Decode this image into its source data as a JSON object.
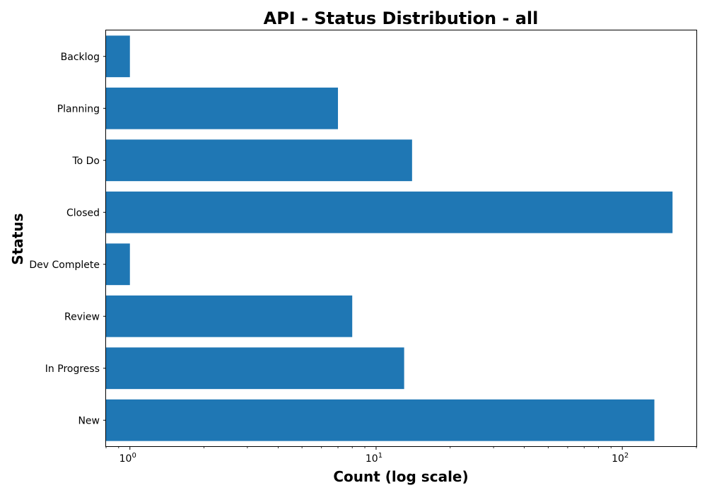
{
  "chart_data": {
    "type": "bar",
    "orientation": "horizontal",
    "title": "API - Status Distribution - all",
    "xlabel": "Count (log scale)",
    "ylabel": "Status",
    "x_scale": "log",
    "xlim": [
      0.8,
      200
    ],
    "x_ticks": [
      {
        "value": 1,
        "base": "10",
        "exp": "0"
      },
      {
        "value": 10,
        "base": "10",
        "exp": "1"
      },
      {
        "value": 100,
        "base": "10",
        "exp": "2"
      }
    ],
    "categories": [
      "New",
      "In Progress",
      "Review",
      "Dev Complete",
      "Closed",
      "To Do",
      "Planning",
      "Backlog"
    ],
    "values": [
      135,
      13,
      8,
      1,
      160,
      14,
      7,
      1
    ],
    "color": "#1f77b4",
    "grid": false,
    "legend": "none"
  }
}
